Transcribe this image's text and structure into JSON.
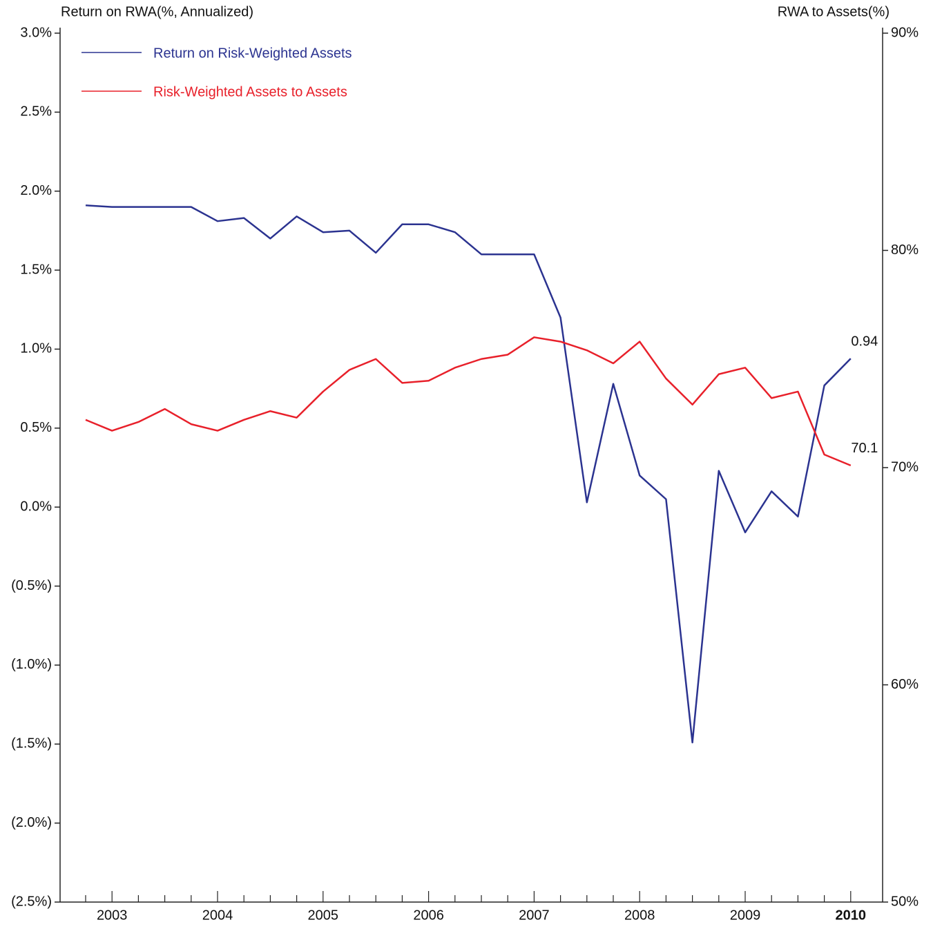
{
  "chart_data": {
    "type": "line",
    "y_label": "Return on RWA(%, Annualized)",
    "y2_label": "RWA to Assets(%)",
    "categories": [
      null,
      "2003",
      null,
      null,
      null,
      "2004",
      null,
      null,
      null,
      "2005",
      null,
      null,
      null,
      "2006",
      null,
      null,
      null,
      "2007",
      null,
      null,
      null,
      "2008",
      null,
      null,
      null,
      "2009",
      null,
      null,
      null,
      "2010"
    ],
    "series": [
      {
        "name": "Return on Risk-Weighted Assets",
        "color": "#2b3390",
        "axis": "y",
        "values": [
          1.91,
          1.9,
          1.9,
          1.9,
          1.9,
          1.81,
          1.83,
          1.7,
          1.84,
          1.74,
          1.75,
          1.61,
          1.79,
          1.79,
          1.74,
          1.6,
          1.6,
          1.6,
          1.2,
          0.03,
          0.78,
          0.2,
          0.05,
          -1.49,
          0.23,
          -0.16,
          0.1,
          -0.06,
          0.77,
          0.94
        ]
      },
      {
        "name": "Risk-Weighted Assets to Assets",
        "color": "#e8202a",
        "axis": "y2",
        "values": [
          72.2,
          71.7,
          72.1,
          72.7,
          72.0,
          71.7,
          72.2,
          72.6,
          72.3,
          73.5,
          74.5,
          75.0,
          73.9,
          74.0,
          74.6,
          75.0,
          75.2,
          76.0,
          75.8,
          75.4,
          74.8,
          75.8,
          74.1,
          72.9,
          74.3,
          74.6,
          73.2,
          73.5,
          70.6,
          70.1
        ]
      }
    ],
    "ylim": [
      -2.5,
      3.0
    ],
    "yticks": [
      {
        "value": -2.5,
        "label": "(2.5%)"
      },
      {
        "value": -2.0,
        "label": "(2.0%)"
      },
      {
        "value": -1.5,
        "label": "(1.5%)"
      },
      {
        "value": -1.0,
        "label": "(1.0%)"
      },
      {
        "value": -0.5,
        "label": "(0.5%)"
      },
      {
        "value": 0,
        "label": "0.0%"
      },
      {
        "value": 0.5,
        "label": "0.5%"
      },
      {
        "value": 1.0,
        "label": "1.0%"
      },
      {
        "value": 1.5,
        "label": "1.5%"
      },
      {
        "value": 2.0,
        "label": "2.0%"
      },
      {
        "value": 2.5,
        "label": "2.5%"
      },
      {
        "value": 3.0,
        "label": "3.0%"
      }
    ],
    "y2lim": [
      50,
      90
    ],
    "y2ticks": [
      {
        "value": 50,
        "label": "50%"
      },
      {
        "value": 60,
        "label": "60%"
      },
      {
        "value": 70,
        "label": "70%"
      },
      {
        "value": 80,
        "label": "80%"
      },
      {
        "value": 90,
        "label": "90%"
      }
    ],
    "grid": false,
    "legend": "upper left",
    "end_labels": true
  }
}
